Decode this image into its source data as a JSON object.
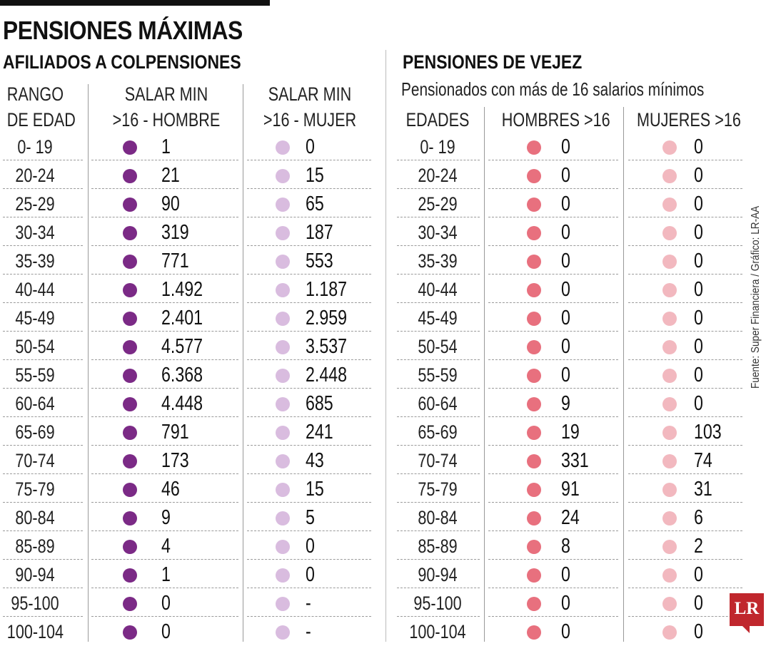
{
  "title": "PENSIONES MÁXIMAS",
  "colors": {
    "purple_dark": "#7b2a86",
    "purple_light": "#d9bcdf",
    "pink_dark": "#e8707e",
    "pink_light": "#f2b8bf",
    "logo_red": "#c0272d"
  },
  "chart_data": [
    {
      "type": "table",
      "title": "AFILIADOS A COLPENSIONES",
      "headers": [
        [
          "RANGO",
          "DE EDAD"
        ],
        [
          "SALAR MIN",
          ">16 - HOMBRE"
        ],
        [
          "SALAR MIN",
          ">16 - MUJER"
        ]
      ],
      "categories": [
        "0- 19",
        "20-24",
        "25-29",
        "30-34",
        "35-39",
        "40-44",
        "45-49",
        "50-54",
        "55-59",
        "60-64",
        "65-69",
        "70-74",
        "75-79",
        "80-84",
        "85-89",
        "90-94",
        "95-100",
        "100-104"
      ],
      "series": [
        {
          "values": [
            "1",
            "21",
            "90",
            "319",
            "771",
            "1.492",
            "2.401",
            "4.577",
            "6.368",
            "4.448",
            "791",
            "173",
            "46",
            "9",
            "4",
            "1",
            "0",
            "0"
          ]
        },
        {
          "values": [
            "0",
            "15",
            "65",
            "187",
            "553",
            "1.187",
            "2.959",
            "3.537",
            "2.448",
            "685",
            "241",
            "43",
            "15",
            "5",
            "0",
            "0",
            "-",
            "-"
          ]
        }
      ]
    },
    {
      "type": "table",
      "title": "PENSIONES DE  VEJEZ",
      "subtitle": "Pensionados con más de 16 salarios mínimos",
      "headers": [
        [
          "EDADES"
        ],
        [
          "HOMBRES >16"
        ],
        [
          "MUJERES >16"
        ]
      ],
      "categories": [
        "0- 19",
        "20-24",
        "25-29",
        "30-34",
        "35-39",
        "40-44",
        "45-49",
        "50-54",
        "55-59",
        "60-64",
        "65-69",
        "70-74",
        "75-79",
        "80-84",
        "85-89",
        "90-94",
        "95-100",
        "100-104"
      ],
      "series": [
        {
          "values": [
            "0",
            "0",
            "0",
            "0",
            "0",
            "0",
            "0",
            "0",
            "0",
            "9",
            "19",
            "331",
            "91",
            "24",
            "8",
            "0",
            "0",
            "0"
          ]
        },
        {
          "values": [
            "0",
            "0",
            "0",
            "0",
            "0",
            "0",
            "0",
            "0",
            "0",
            "0",
            "103",
            "74",
            "31",
            "6",
            "2",
            "0",
            "0",
            "0"
          ]
        }
      ]
    }
  ],
  "source": "Fuente: Super Financiera / Gráfico: LR-AA",
  "logo": "LR"
}
